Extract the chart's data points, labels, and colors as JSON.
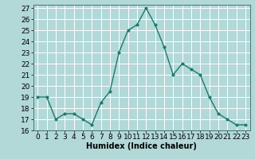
{
  "x": [
    0,
    1,
    2,
    3,
    4,
    5,
    6,
    7,
    8,
    9,
    10,
    11,
    12,
    13,
    14,
    15,
    16,
    17,
    18,
    19,
    20,
    21,
    22,
    23
  ],
  "y": [
    19,
    19,
    17,
    17.5,
    17.5,
    17,
    16.5,
    18.5,
    19.5,
    23,
    25,
    25.5,
    27,
    25.5,
    23.5,
    21,
    22,
    21.5,
    21,
    19,
    17.5,
    17,
    16.5,
    16.5
  ],
  "line_color": "#1a7a6a",
  "marker_color": "#1a7a6a",
  "bg_color": "#b2d8d8",
  "grid_color": "#ffffff",
  "xlabel": "Humidex (Indice chaleur)",
  "ylim": [
    16,
    27
  ],
  "xlim": [
    -0.5,
    23.5
  ],
  "yticks": [
    16,
    17,
    18,
    19,
    20,
    21,
    22,
    23,
    24,
    25,
    26,
    27
  ],
  "xticks": [
    0,
    1,
    2,
    3,
    4,
    5,
    6,
    7,
    8,
    9,
    10,
    11,
    12,
    13,
    14,
    15,
    16,
    17,
    18,
    19,
    20,
    21,
    22,
    23
  ],
  "xtick_labels": [
    "0",
    "1",
    "2",
    "3",
    "4",
    "5",
    "6",
    "7",
    "8",
    "9",
    "10",
    "11",
    "12",
    "13",
    "14",
    "15",
    "16",
    "17",
    "18",
    "19",
    "20",
    "21",
    "22",
    "23"
  ],
  "ytick_labels": [
    "16",
    "17",
    "18",
    "19",
    "20",
    "21",
    "22",
    "23",
    "24",
    "25",
    "26",
    "27"
  ],
  "xlabel_fontsize": 7,
  "tick_fontsize": 6.5,
  "marker_size": 2.5,
  "line_width": 1.0
}
